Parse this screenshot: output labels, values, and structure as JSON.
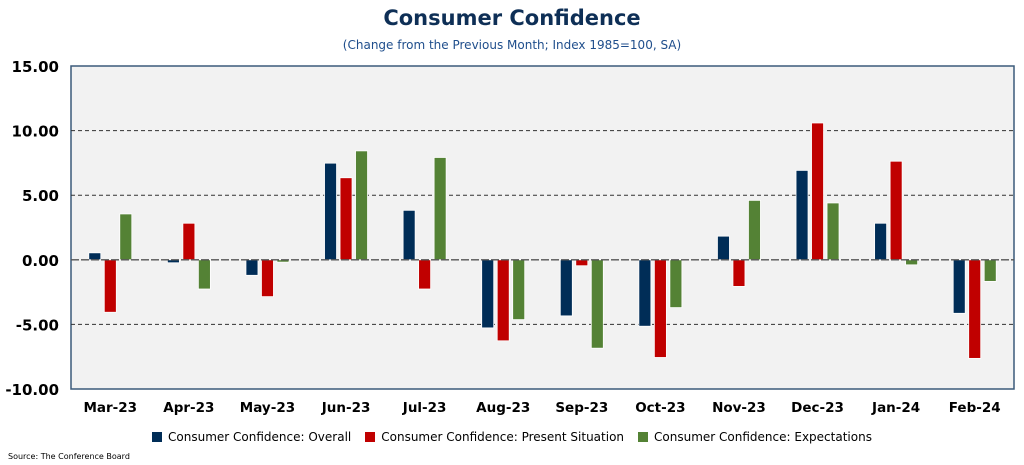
{
  "chart_data": {
    "type": "bar",
    "title": "Consumer Confidence",
    "subtitle": "(Change from the Previous Month; Index 1985=100, SA)",
    "xlabel": "",
    "ylabel": "",
    "ylim": [
      -10,
      15
    ],
    "yticks": [
      -10,
      -5,
      0,
      5,
      10,
      15
    ],
    "ytick_labels": [
      "-10.00",
      "-5.00",
      "0.00",
      "5.00",
      "10.00",
      "15.00"
    ],
    "grid": true,
    "legend_position": "bottom",
    "categories": [
      "Mar-23",
      "Apr-23",
      "May-23",
      "Jun-23",
      "Jul-23",
      "Aug-23",
      "Sep-23",
      "Oct-23",
      "Nov-23",
      "Dec-23",
      "Jan-24",
      "Feb-24"
    ],
    "series": [
      {
        "name": "Consumer Confidence: Overall",
        "color": "#002d57",
        "values": [
          0.54,
          -0.23,
          -1.2,
          7.48,
          3.83,
          -5.27,
          -4.34,
          -5.14,
          1.83,
          6.92,
          2.83,
          -4.14
        ]
      },
      {
        "name": "Consumer Confidence: Present Situation",
        "color": "#c00000",
        "values": [
          -4.06,
          2.83,
          -2.85,
          6.35,
          -2.26,
          -6.27,
          -0.46,
          -7.56,
          -2.06,
          10.59,
          7.63,
          -7.63
        ]
      },
      {
        "name": "Consumer Confidence: Expectations",
        "color": "#548235",
        "values": [
          3.55,
          -2.26,
          -0.18,
          8.43,
          7.92,
          -4.63,
          -6.84,
          -3.7,
          4.6,
          4.4,
          -0.39,
          -1.67
        ]
      }
    ]
  },
  "source": "Source: The Conference Board"
}
